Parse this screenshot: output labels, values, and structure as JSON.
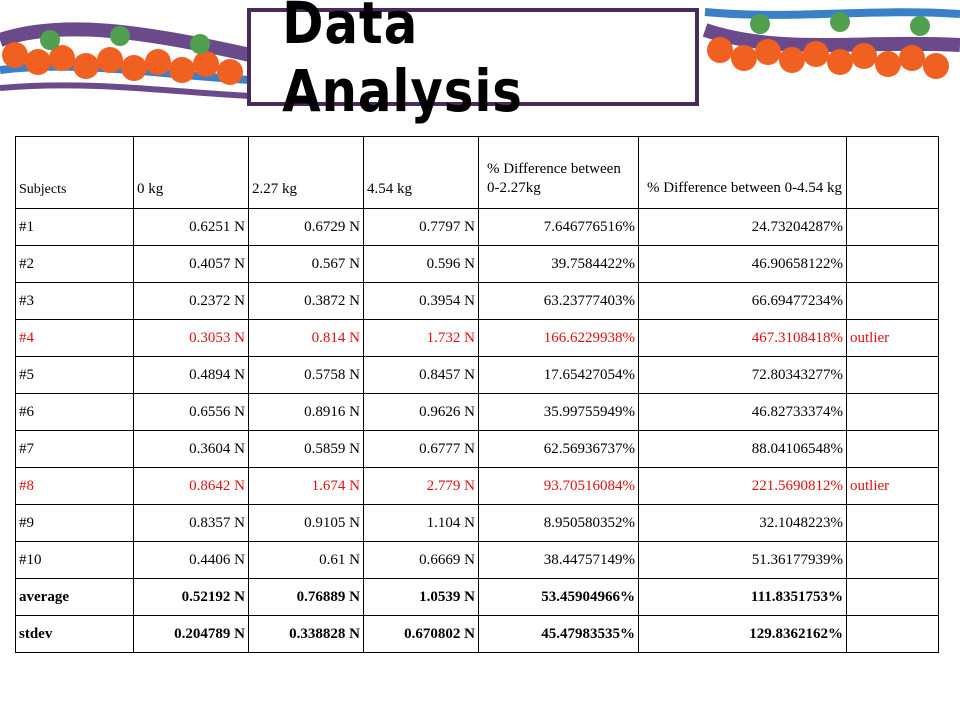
{
  "title": "Data Analysis",
  "colors": {
    "outlier": "#e01010",
    "title_border": "#4a2a5a",
    "molecule_orange": "#f06020",
    "molecule_green": "#50a050",
    "molecule_blue": "#3a80c8",
    "strand_purple": "#6a4a8a"
  },
  "table": {
    "headers": [
      "Subjects",
      "0 kg",
      "2.27 kg",
      "4.54 kg",
      "% Difference between 0-2.27kg",
      "% Difference between 0-4.54 kg",
      ""
    ],
    "rows": [
      {
        "subject": "#1",
        "kg0": "0.6251 N",
        "kg227": "0.6729 N",
        "kg454": "0.7797 N",
        "diff227": "7.646776516%",
        "diff454": "24.73204287%",
        "note": ""
      },
      {
        "subject": "#2",
        "kg0": "0.4057 N",
        "kg227": "0.567 N",
        "kg454": "0.596 N",
        "diff227": "39.7584422%",
        "diff454": "46.90658122%",
        "note": ""
      },
      {
        "subject": "#3",
        "kg0": "0.2372 N",
        "kg227": "0.3872 N",
        "kg454": "0.3954 N",
        "diff227": "63.23777403%",
        "diff454": "66.69477234%",
        "note": ""
      },
      {
        "subject": "#4",
        "kg0": "0.3053 N",
        "kg227": "0.814 N",
        "kg454": "1.732 N",
        "diff227": "166.6229938%",
        "diff454": "467.3108418%",
        "note": "outlier"
      },
      {
        "subject": "#5",
        "kg0": "0.4894 N",
        "kg227": "0.5758 N",
        "kg454": "0.8457 N",
        "diff227": "17.65427054%",
        "diff454": "72.80343277%",
        "note": ""
      },
      {
        "subject": "#6",
        "kg0": "0.6556 N",
        "kg227": "0.8916 N",
        "kg454": "0.9626 N",
        "diff227": "35.99755949%",
        "diff454": "46.82733374%",
        "note": ""
      },
      {
        "subject": "#7",
        "kg0": "0.3604 N",
        "kg227": "0.5859 N",
        "kg454": "0.6777 N",
        "diff227": "62.56936737%",
        "diff454": "88.04106548%",
        "note": ""
      },
      {
        "subject": "#8",
        "kg0": "0.8642 N",
        "kg227": "1.674 N",
        "kg454": "2.779 N",
        "diff227": "93.70516084%",
        "diff454": "221.5690812%",
        "note": "outlier"
      },
      {
        "subject": "#9",
        "kg0": "0.8357 N",
        "kg227": "0.9105 N",
        "kg454": "1.104 N",
        "diff227": "8.950580352%",
        "diff454": "32.1048223%",
        "note": ""
      },
      {
        "subject": "#10",
        "kg0": "0.4406 N",
        "kg227": "0.61 N",
        "kg454": "0.6669 N",
        "diff227": "38.44757149%",
        "diff454": "51.36177939%",
        "note": ""
      },
      {
        "subject": "average",
        "kg0": "0.52192 N",
        "kg227": "0.76889 N",
        "kg454": "1.0539 N",
        "diff227": "53.45904966%",
        "diff454": "111.8351753%",
        "note": ""
      },
      {
        "subject": "stdev",
        "kg0": "0.204789 N",
        "kg227": "0.338828 N",
        "kg454": "0.670802 N",
        "diff227": "45.47983535%",
        "diff454": "129.8362162%",
        "note": ""
      }
    ]
  }
}
